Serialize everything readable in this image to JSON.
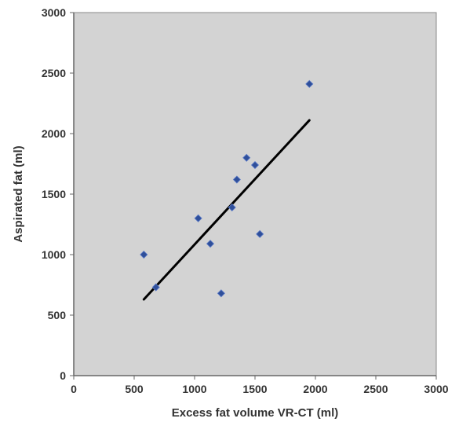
{
  "chart_data": {
    "type": "scatter",
    "title": "",
    "xlabel": "Excess fat volume VR-CT (ml)",
    "ylabel": "Aspirated fat (ml)",
    "xlim": [
      0,
      3000
    ],
    "ylim": [
      0,
      3000
    ],
    "xticks": [
      "0",
      "500",
      "1000",
      "1500",
      "2000",
      "2500",
      "3000"
    ],
    "yticks": [
      "0",
      "500",
      "1000",
      "1500",
      "2000",
      "2500",
      "3000"
    ],
    "grid": false,
    "legend": "none",
    "series": [
      {
        "points": [
          {
            "x": 580,
            "y": 1000
          },
          {
            "x": 680,
            "y": 730
          },
          {
            "x": 1030,
            "y": 1300
          },
          {
            "x": 1130,
            "y": 1090
          },
          {
            "x": 1220,
            "y": 680
          },
          {
            "x": 1310,
            "y": 1390
          },
          {
            "x": 1350,
            "y": 1620
          },
          {
            "x": 1430,
            "y": 1800
          },
          {
            "x": 1500,
            "y": 1740
          },
          {
            "x": 1540,
            "y": 1170
          },
          {
            "x": 1950,
            "y": 2410
          }
        ]
      }
    ],
    "trendline": {
      "x": [
        580,
        1950
      ],
      "y": [
        630,
        2110
      ]
    },
    "colors": {
      "plot_background": "#d3d3d3",
      "point": "#2f4f9a",
      "trendline": "#000000",
      "axis": "#666666"
    }
  }
}
